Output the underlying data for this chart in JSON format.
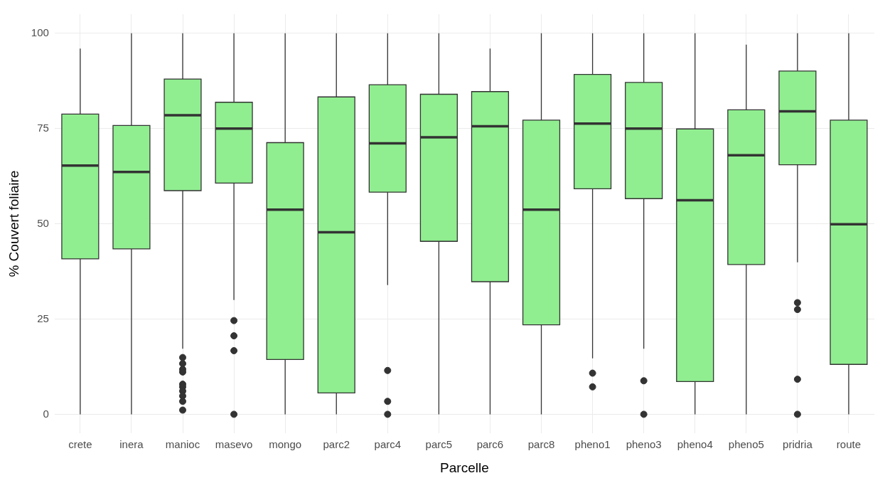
{
  "chart_data": {
    "type": "box",
    "xlabel": "Parcelle",
    "ylabel": "% Couvert foliaire",
    "categories": [
      "crete",
      "inera",
      "manioc",
      "masevo",
      "mongo",
      "parc2",
      "parc4",
      "parc5",
      "parc6",
      "parc8",
      "pheno1",
      "pheno3",
      "pheno4",
      "pheno5",
      "pridria",
      "route"
    ],
    "color": "#90ee90",
    "boxes": [
      {
        "low": 0,
        "q1": 40.8,
        "median": 65.3,
        "q3": 78.8,
        "high": 96
      },
      {
        "low": 0,
        "q1": 43.4,
        "median": 63.6,
        "q3": 75.8,
        "high": 100
      },
      {
        "low": 17.2,
        "q1": 58.7,
        "median": 78.5,
        "q3": 88,
        "high": 100,
        "outliers": [
          14.9,
          13.3,
          11.8,
          11.1,
          7.9,
          7.2,
          6.1,
          4.8,
          3.4,
          1.1
        ]
      },
      {
        "low": 30,
        "q1": 60.7,
        "median": 75,
        "q3": 81.9,
        "high": 100,
        "outliers": [
          24.6,
          20.6,
          16.7,
          0
        ]
      },
      {
        "low": 0,
        "q1": 14.4,
        "median": 53.7,
        "q3": 71.3,
        "high": 100
      },
      {
        "low": 0,
        "q1": 5.6,
        "median": 47.8,
        "q3": 83.3,
        "high": 100
      },
      {
        "low": 33.9,
        "q1": 58.3,
        "median": 71.1,
        "q3": 86.5,
        "high": 100,
        "outliers": [
          11.5,
          3.4,
          0
        ]
      },
      {
        "low": 0,
        "q1": 45.4,
        "median": 72.7,
        "q3": 84,
        "high": 100
      },
      {
        "low": 0,
        "q1": 34.8,
        "median": 75.6,
        "q3": 84.7,
        "high": 96
      },
      {
        "low": 0,
        "q1": 23.5,
        "median": 53.7,
        "q3": 77.2,
        "high": 100
      },
      {
        "low": 14.7,
        "q1": 59.2,
        "median": 76.3,
        "q3": 89.2,
        "high": 100,
        "outliers": [
          10.8,
          7.2
        ]
      },
      {
        "low": 17.2,
        "q1": 56.6,
        "median": 75,
        "q3": 87.1,
        "high": 100,
        "outliers": [
          8.8,
          0
        ]
      },
      {
        "low": 0,
        "q1": 8.6,
        "median": 56.2,
        "q3": 74.9,
        "high": 100
      },
      {
        "low": 0,
        "q1": 39.3,
        "median": 68,
        "q3": 79.9,
        "high": 97
      },
      {
        "low": 39.9,
        "q1": 65.5,
        "median": 79.5,
        "q3": 90.1,
        "high": 100,
        "outliers": [
          29.3,
          27.5,
          9.2,
          0
        ]
      },
      {
        "low": 0,
        "q1": 13.1,
        "median": 49.9,
        "q3": 77.2,
        "high": 100
      }
    ],
    "ylim": [
      -5,
      105
    ],
    "yticks": [
      0,
      25,
      50,
      75,
      100
    ],
    "grid": true,
    "legend": false
  }
}
